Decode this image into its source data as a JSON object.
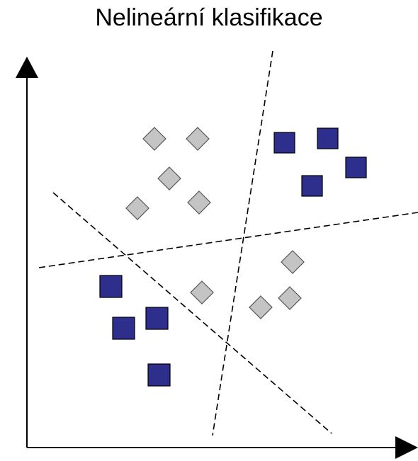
{
  "title": "Nelineární klasifikace",
  "colors": {
    "class_a": "#2e2e8c",
    "class_b": "#c4c4c4",
    "boundary": "#000000",
    "axes": "#000000"
  },
  "legend": [
    {
      "shape": "square",
      "color": "#2e2e8c"
    },
    {
      "shape": "diamond",
      "color": "#c4c4c4"
    }
  ]
}
